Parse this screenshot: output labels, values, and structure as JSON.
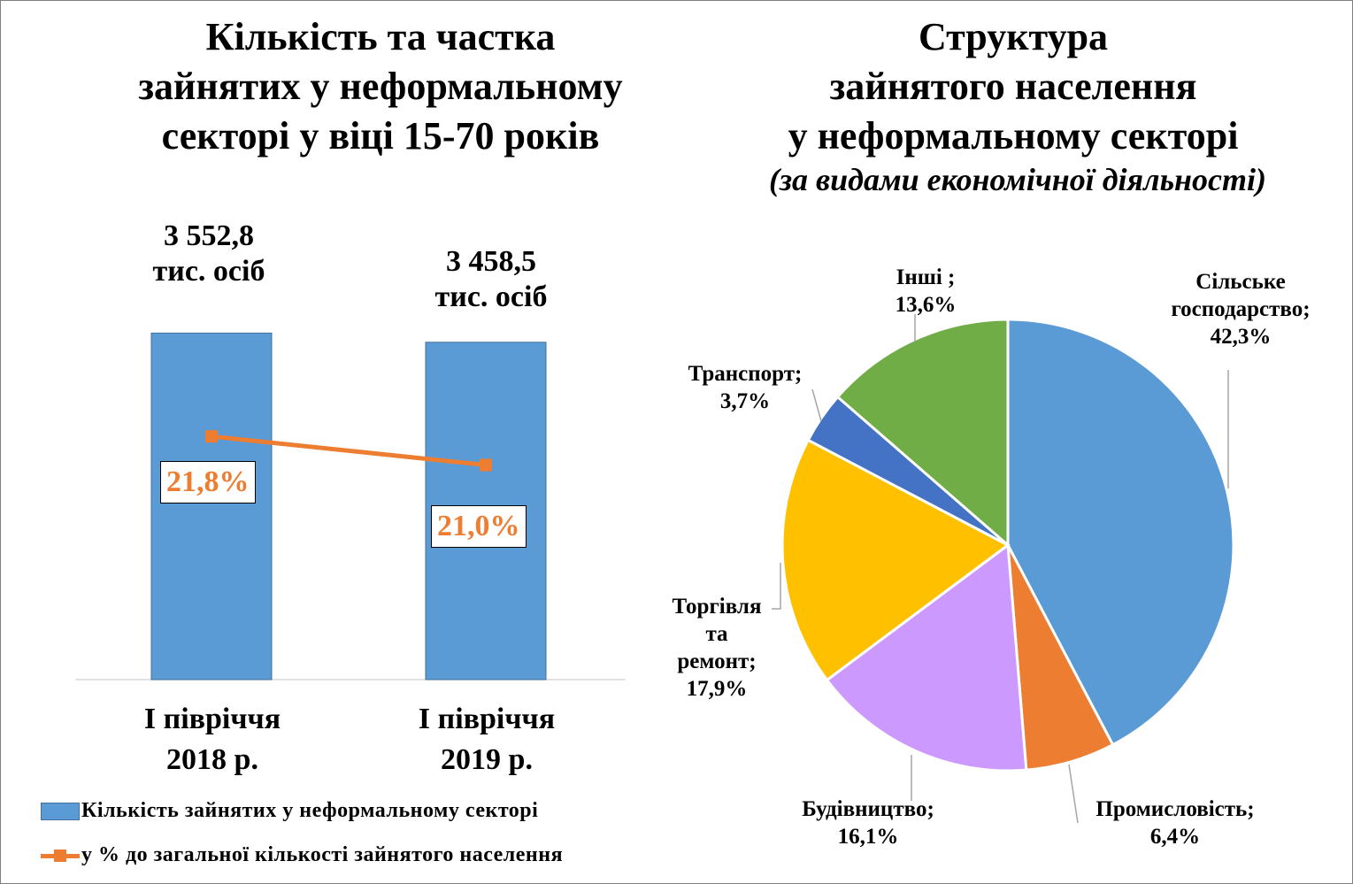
{
  "left_title_lines": [
    "Кількість та частка",
    "зайнятих у неформальному",
    "секторі у віці 15-70 років"
  ],
  "right_title_lines": [
    "Структура",
    "зайнятого населення",
    "у неформальному секторі"
  ],
  "right_subtitle": "(за видами економічної діяльності)",
  "colors": {
    "bar": "#5b9bd5",
    "line": "#ed7d31",
    "agriculture": "#5b9bd5",
    "industry": "#ed7d31",
    "construction": "#cc99ff",
    "trade": "#ffc000",
    "transport": "#4472c4",
    "other": "#70ad47"
  },
  "chart_data": [
    {
      "type": "bar",
      "title": "Кількість та частка зайнятих у неформальному секторі у віці 15-70 років",
      "categories": [
        [
          "І півріччя",
          "2018 р."
        ],
        [
          "І півріччя",
          "2019 р."
        ]
      ],
      "series": [
        {
          "name": "Кількість зайнятих у неформальному секторі",
          "kind": "bar",
          "values": [
            3552.8,
            3458.5
          ],
          "labels": [
            [
              "3 552,8",
              "тис. осіб"
            ],
            [
              "3 458,5",
              "тис. осіб"
            ]
          ],
          "ylim": [
            0,
            4400
          ]
        },
        {
          "name": "у % до загальної кількості зайнятого населення",
          "kind": "line",
          "values": [
            21.8,
            21.0
          ],
          "labels": [
            "21,8%",
            "21,0%"
          ],
          "ylim": [
            15,
            27
          ]
        }
      ],
      "legend": "bottom"
    },
    {
      "type": "pie",
      "title": "Структура зайнятого населення у неформальному секторі",
      "subtitle": "(за видами економічної діяльності)",
      "slices": [
        {
          "key": "agriculture",
          "lines": [
            "Сільське",
            "господарство;",
            "42,3%"
          ],
          "value": 42.3
        },
        {
          "key": "industry",
          "lines": [
            "Промисловість;",
            "6,4%"
          ],
          "value": 6.4
        },
        {
          "key": "construction",
          "lines": [
            "Будівництво;",
            "16,1%"
          ],
          "value": 16.1
        },
        {
          "key": "trade",
          "lines": [
            "Торгівля",
            "та",
            "ремонт;",
            "17,9%"
          ],
          "value": 17.9
        },
        {
          "key": "transport",
          "lines": [
            "Транспорт;",
            "3,7%"
          ],
          "value": 3.7
        },
        {
          "key": "other",
          "lines": [
            "Інші ;",
            "13,6%"
          ],
          "value": 13.6
        }
      ]
    }
  ]
}
